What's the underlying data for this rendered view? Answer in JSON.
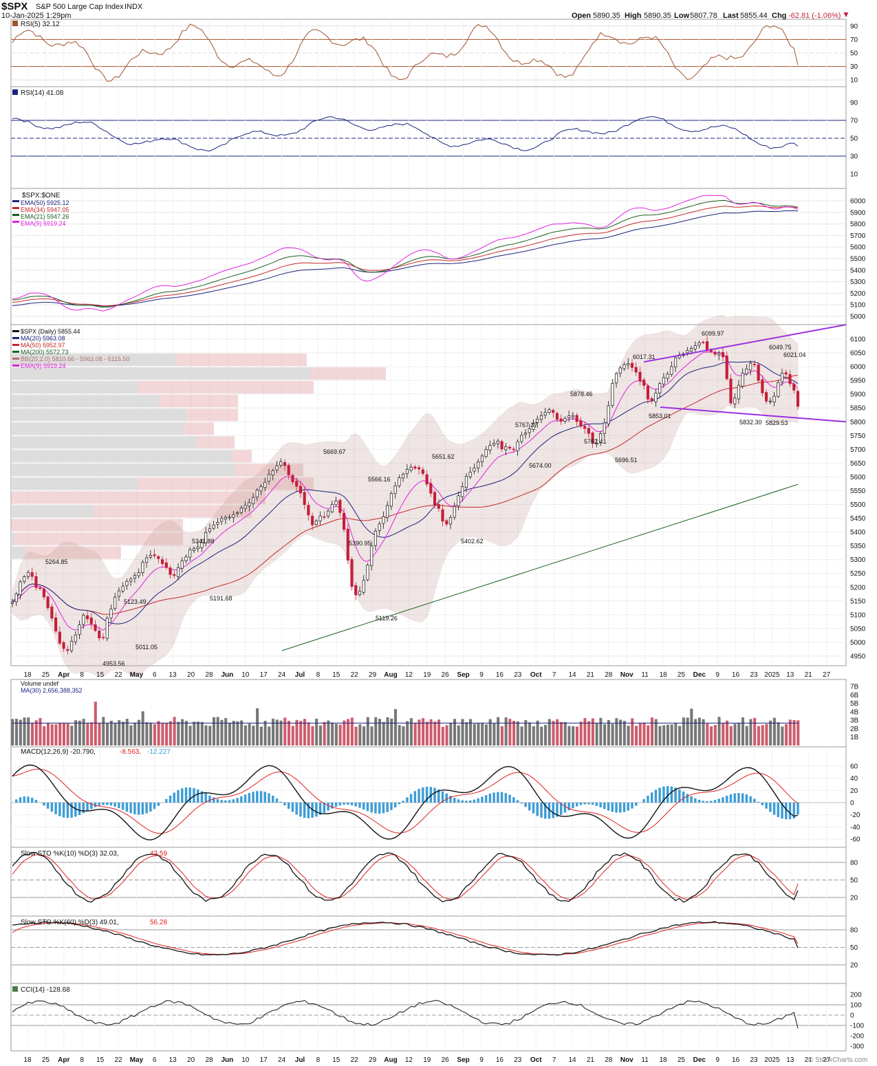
{
  "header": {
    "symbol": "$SPX",
    "name": "S&P 500 Large Cap Index",
    "exchange": "INDX",
    "timestamp": "10-Jan-2025 1:29pm",
    "open_label": "Open",
    "open": "5890.35",
    "high_label": "High",
    "high": "5890.35",
    "low_label": "Low",
    "low": "5807.78",
    "last_label": "Last",
    "last": "5855.44",
    "chg_label": "Chg",
    "chg": "-62.81 (-1.06%)",
    "watermark": "© StockCharts.com"
  },
  "colors": {
    "up": "#111111",
    "down": "#c41e3a",
    "ma20": "#1a237e",
    "ma50": "#c62828",
    "ma200": "#1b5e20",
    "ema9": "#e020e0",
    "trendline": "#9b30e0",
    "rsi5_fill": "#a0522d",
    "rsi14_line": "#1a237e",
    "macd_hist": "#3d9dd6",
    "vol_up": "#777777",
    "vol_down": "#cd5c6c"
  },
  "panels": {
    "rsi5": {
      "legend": "RSI(5) 32.12",
      "ticks": [
        "90",
        "70",
        "50",
        "30",
        "10"
      ]
    },
    "rsi14": {
      "legend": "RSI(14) 41.08",
      "ticks": [
        "90",
        "70",
        "50",
        "30",
        "10"
      ]
    },
    "ema": {
      "legend_title": "$SPX:$ONE",
      "legend": [
        "EMA(50) 5925.12",
        "EMA(34) 5947.05",
        "EMA(21) 5947.26",
        "EMA(9) 5919.24"
      ],
      "ticks": [
        "6000",
        "5900",
        "5800",
        "5700",
        "5600",
        "5500",
        "5400",
        "5300",
        "5200",
        "5100",
        "5000"
      ]
    },
    "price": {
      "legend": [
        "$SPX (Daily) 5855.44",
        "MA(20) 5963.08",
        "MA(50) 5952.97",
        "MA(200) 5572.73",
        "BB(20,2.0) 5810.66 - 5963.08 - 6115.50",
        "EMA(9) 5919.24"
      ],
      "ticks": [
        "6100",
        "6050",
        "6000",
        "5950",
        "5900",
        "5850",
        "5800",
        "5750",
        "5700",
        "5650",
        "5600",
        "5550",
        "5500",
        "5450",
        "5400",
        "5350",
        "5300",
        "5250",
        "5200",
        "5150",
        "5100",
        "5050",
        "5000",
        "4950"
      ]
    },
    "volume": {
      "legend": [
        "Volume undef",
        "MA(30) 2,656,388,352"
      ],
      "ticks": [
        "7B",
        "6B",
        "5B",
        "4B",
        "3B",
        "2B",
        "1B"
      ]
    },
    "macd": {
      "legend_a": "MACD(12,26,9) -20.790,",
      "legend_b": "-8.563,",
      "legend_c": "-12.227",
      "ticks": [
        "60",
        "40",
        "20",
        "0",
        "-20",
        "-40",
        "-60"
      ]
    },
    "sto10": {
      "legend_a": "Slow STO %K(10) %D(3) 32.03,",
      "legend_b": "43.59",
      "ticks": [
        "80",
        "50",
        "20"
      ]
    },
    "sto60": {
      "legend_a": "Slow STO %K(60) %D(3) 49.01,",
      "legend_b": "56.28",
      "ticks": [
        "80",
        "50",
        "20"
      ]
    },
    "cci": {
      "legend": "CCI(14) -128.68",
      "ticks": [
        "200",
        "100",
        "0",
        "-100",
        "-200",
        "-300"
      ]
    }
  },
  "x_axis_labels": [
    "18",
    "25",
    "Apr",
    "8",
    "15",
    "22",
    "May",
    "6",
    "13",
    "20",
    "28",
    "Jun",
    "10",
    "17",
    "24",
    "Jul",
    "8",
    "15",
    "22",
    "29",
    "Aug",
    "12",
    "19",
    "26",
    "Sep",
    "9",
    "16",
    "23",
    "Oct",
    "7",
    "14",
    "21",
    "28",
    "Nov",
    "11",
    "18",
    "25",
    "Dec",
    "9",
    "16",
    "23",
    "2025",
    "13",
    "21",
    "27"
  ],
  "chart_data": {
    "type": "candlestick",
    "title": "$SPX (Daily) 5855.44",
    "ylim": [
      4920,
      6150
    ],
    "price_annotations": [
      {
        "label": "5264.85",
        "value": 5264.85,
        "date": "Mar 28"
      },
      {
        "label": "4953.56",
        "value": 4953.56,
        "date": "Apr 19"
      },
      {
        "label": "5123.49",
        "value": 5123.49,
        "date": "Apr 30"
      },
      {
        "label": "5011.05",
        "value": 5011.05,
        "date": "May 1"
      },
      {
        "label": "5341.88",
        "value": 5341.88,
        "date": "May 21"
      },
      {
        "label": "5191.68",
        "value": 5191.68,
        "date": "May 31"
      },
      {
        "label": "5669.67",
        "value": 5669.67,
        "date": "Jul 16"
      },
      {
        "label": "5390.95",
        "value": 5390.95,
        "date": "Jul 25"
      },
      {
        "label": "5566.16",
        "value": 5566.16,
        "date": "Jul 31"
      },
      {
        "label": "5119.26",
        "value": 5119.26,
        "date": "Aug 5"
      },
      {
        "label": "5651.62",
        "value": 5651.62,
        "date": "Aug 22"
      },
      {
        "label": "5402.62",
        "value": 5402.62,
        "date": "Sep 6"
      },
      {
        "label": "5767.37",
        "value": 5767.37,
        "date": "Sep 19"
      },
      {
        "label": "5674.00",
        "value": 5674.0,
        "date": "Sep 24"
      },
      {
        "label": "5878.46",
        "value": 5878.46,
        "date": "Oct 17"
      },
      {
        "label": "5762.41",
        "value": 5762.41,
        "date": "Oct 21"
      },
      {
        "label": "5696.51",
        "value": 5696.51,
        "date": "Nov 4"
      },
      {
        "label": "6017.31",
        "value": 6017.31,
        "date": "Nov 11"
      },
      {
        "label": "5853.01",
        "value": 5853.01,
        "date": "Nov 19"
      },
      {
        "label": "6099.97",
        "value": 6099.97,
        "date": "Dec 6"
      },
      {
        "label": "6049.75",
        "value": 6049.75,
        "date": "Dec 26"
      },
      {
        "label": "5832.30",
        "value": 5832.3,
        "date": "Dec 20"
      },
      {
        "label": "5829.53",
        "value": 5829.53,
        "date": "Jan 2"
      },
      {
        "label": "6021.04",
        "value": 6021.04,
        "date": "Jan 6"
      }
    ],
    "close_path": [
      5150,
      5180,
      5230,
      5250,
      5260,
      5205,
      5200,
      5160,
      5120,
      5080,
      5010,
      4980,
      4970,
      5000,
      5030,
      5070,
      5110,
      5070,
      5050,
      5010,
      5020,
      5100,
      5130,
      5180,
      5190,
      5220,
      5230,
      5240,
      5260,
      5300,
      5310,
      5320,
      5305,
      5290,
      5270,
      5240,
      5250,
      5290,
      5310,
      5330,
      5340,
      5350,
      5370,
      5410,
      5420,
      5430,
      5450,
      5450,
      5460,
      5470,
      5480,
      5490,
      5500,
      5530,
      5560,
      5570,
      5590,
      5620,
      5640,
      5660,
      5640,
      5600,
      5580,
      5560,
      5520,
      5470,
      5430,
      5440,
      5460,
      5450,
      5490,
      5520,
      5480,
      5410,
      5290,
      5180,
      5170,
      5200,
      5260,
      5340,
      5400,
      5430,
      5470,
      5520,
      5560,
      5590,
      5610,
      5630,
      5640,
      5630,
      5620,
      5590,
      5550,
      5500,
      5480,
      5420,
      5430,
      5480,
      5520,
      5560,
      5600,
      5620,
      5640,
      5660,
      5690,
      5710,
      5720,
      5730,
      5700,
      5710,
      5690,
      5720,
      5750,
      5760,
      5780,
      5800,
      5820,
      5830,
      5850,
      5840,
      5810,
      5800,
      5820,
      5830,
      5810,
      5790,
      5780,
      5760,
      5710,
      5730,
      5780,
      5830,
      5930,
      5970,
      6000,
      6010,
      6010,
      5990,
      5950,
      5940,
      5880,
      5880,
      5920,
      5950,
      5970,
      5990,
      6030,
      6040,
      6050,
      6060,
      6070,
      6080,
      6090,
      6060,
      6050,
      6040,
      6050,
      6010,
      5870,
      5880,
      5930,
      5980,
      6000,
      6030,
      5970,
      5910,
      5870,
      5880,
      5900,
      5960,
      6000,
      5940,
      5920,
      5855
    ],
    "ma200_end": [
      [
        0.36,
        4970
      ],
      [
        1.0,
        5573
      ]
    ],
    "trendlines": [
      {
        "from": [
          "Nov 11",
          6017
        ],
        "to": [
          "Feb 1",
          6175
        ]
      },
      {
        "from": [
          "Nov 15",
          5850
        ],
        "to": [
          "Feb 1",
          5795
        ]
      }
    ],
    "volume": {
      "scale": "B",
      "ylim": [
        0,
        7.5
      ],
      "ma30": 2.66
    },
    "macd": {
      "ylim": [
        -70,
        70
      ],
      "last_macd": -20.79,
      "last_signal": -8.563,
      "last_hist": -12.227
    },
    "rsi5_last": 32.12,
    "rsi14_last": 41.08,
    "cci_last": -128.68,
    "sto10_last": [
      32.03,
      43.59
    ],
    "sto60_last": [
      49.01,
      56.28
    ]
  }
}
